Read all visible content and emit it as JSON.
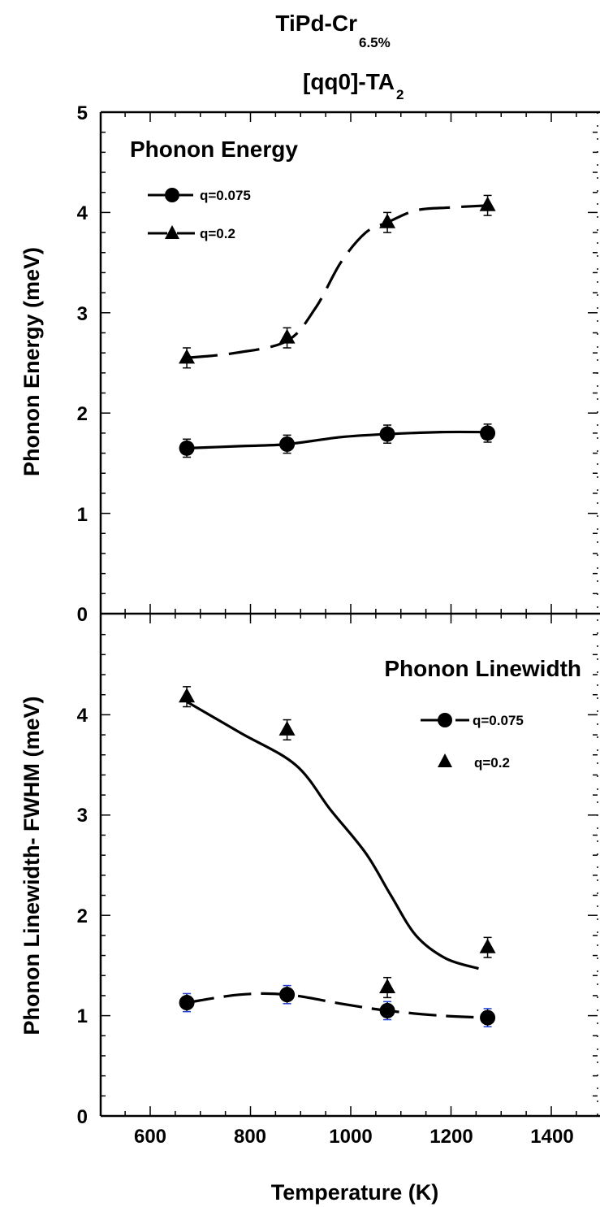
{
  "title": {
    "main": "TiPd-Cr",
    "main_sub": "6.5%",
    "line2": "[qq0]-TA",
    "line2_sub": "2"
  },
  "chart_data": [
    {
      "type": "line",
      "panel": "top",
      "title": "Phonon Energy",
      "xlabel": "",
      "ylabel": "Phonon Energy (meV)",
      "xlim": [
        500,
        1500
      ],
      "ylim": [
        0,
        5
      ],
      "yticks": [
        "0",
        "1",
        "2",
        "3",
        "4",
        "5"
      ],
      "legend_position": "top-left",
      "legend": [
        "q=0.075",
        "q=0.2"
      ],
      "series": [
        {
          "name": "q=0.075",
          "marker": "circle",
          "line": "solid",
          "x": [
            673,
            873,
            1073,
            1273
          ],
          "y": [
            1.65,
            1.69,
            1.79,
            1.8
          ],
          "err": [
            0.09,
            0.09,
            0.09,
            0.09
          ],
          "curve_x": [
            673,
            780,
            873,
            980,
            1073,
            1180,
            1273
          ],
          "curve_y": [
            1.65,
            1.67,
            1.69,
            1.76,
            1.79,
            1.81,
            1.81
          ]
        },
        {
          "name": "q=0.2",
          "marker": "triangle",
          "line": "dashed",
          "x": [
            673,
            873,
            1073,
            1273
          ],
          "y": [
            2.55,
            2.75,
            3.9,
            4.07
          ],
          "err": [
            0.1,
            0.1,
            0.1,
            0.1
          ],
          "curve_x": [
            673,
            770,
            873,
            930,
            980,
            1030,
            1073,
            1130,
            1200,
            1273
          ],
          "curve_y": [
            2.55,
            2.6,
            2.72,
            3.05,
            3.5,
            3.8,
            3.9,
            4.02,
            4.05,
            4.07
          ]
        }
      ]
    },
    {
      "type": "line",
      "panel": "bottom",
      "title": "Phonon Linewidth",
      "xlabel": "Temperature (K)",
      "ylabel": "Phonon Linewidth- FWHM (meV)",
      "xlim": [
        500,
        1500
      ],
      "ylim": [
        0,
        5
      ],
      "xticks": [
        "600",
        "800",
        "1000",
        "1200",
        "1400"
      ],
      "yticks": [
        "0",
        "1",
        "2",
        "3",
        "4"
      ],
      "legend_position": "top-right",
      "legend": [
        "q=0.075",
        "q=0.2"
      ],
      "series": [
        {
          "name": "q=0.075",
          "marker": "circle",
          "line": "dashed",
          "x": [
            673,
            873,
            1073,
            1273
          ],
          "y": [
            1.13,
            1.21,
            1.05,
            0.98
          ],
          "err": [
            0.09,
            0.09,
            0.09,
            0.09
          ],
          "curve_x": [
            673,
            780,
            873,
            980,
            1073,
            1180,
            1273
          ],
          "curve_y": [
            1.13,
            1.21,
            1.21,
            1.12,
            1.05,
            1.0,
            0.98
          ]
        },
        {
          "name": "q=0.2",
          "marker": "triangle",
          "line": "none",
          "x": [
            673,
            873,
            1073,
            1273
          ],
          "y": [
            4.18,
            3.85,
            1.28,
            1.68
          ],
          "err": [
            0.1,
            0.1,
            0.1,
            0.1
          ]
        },
        {
          "name": "",
          "marker": "none",
          "line": "solid",
          "curve_x": [
            673,
            780,
            890,
            960,
            1030,
            1080,
            1130,
            1190,
            1255
          ],
          "curve_y": [
            4.13,
            3.82,
            3.5,
            3.05,
            2.62,
            2.2,
            1.8,
            1.57,
            1.47
          ]
        }
      ]
    }
  ]
}
